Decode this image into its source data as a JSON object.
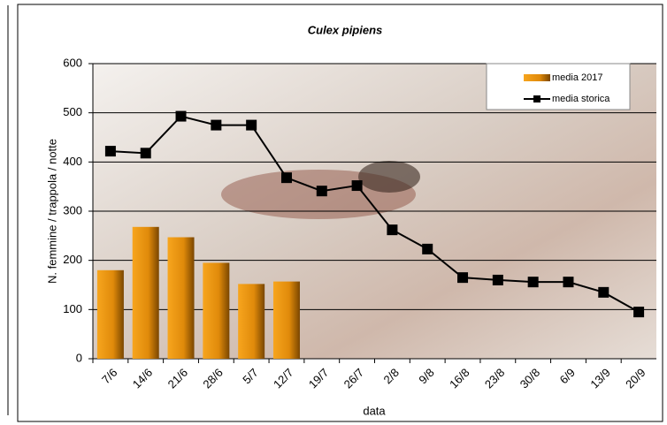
{
  "chart_data": {
    "type": "bar",
    "title": "Culex pipiens",
    "x_label": "data",
    "y_label": "N. femmine / trappola / notte",
    "categories": [
      "7/6",
      "14/6",
      "21/6",
      "28/6",
      "5/7",
      "12/7",
      "19/7",
      "26/7",
      "2/8",
      "9/8",
      "16/8",
      "23/8",
      "30/8",
      "6/9",
      "13/9",
      "20/9"
    ],
    "series": [
      {
        "name": "media 2017",
        "type": "bar",
        "color": "#e8900c",
        "values": [
          180,
          268,
          247,
          195,
          152,
          157,
          null,
          null,
          null,
          null,
          null,
          null,
          null,
          null,
          null,
          null
        ]
      },
      {
        "name": "media storica",
        "type": "line",
        "color": "#000000",
        "values": [
          422,
          418,
          493,
          475,
          475,
          368,
          341,
          352,
          262,
          223,
          165,
          160,
          156,
          156,
          135,
          95
        ]
      }
    ],
    "ylim": [
      0,
      600
    ],
    "yticks": [
      0,
      100,
      200,
      300,
      400,
      500,
      600
    ],
    "grid": true,
    "legend": "top-right"
  }
}
